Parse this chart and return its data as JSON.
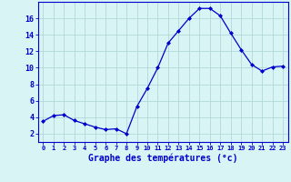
{
  "hours": [
    0,
    1,
    2,
    3,
    4,
    5,
    6,
    7,
    8,
    9,
    10,
    11,
    12,
    13,
    14,
    15,
    16,
    17,
    18,
    19,
    20,
    21,
    22,
    23
  ],
  "temperatures": [
    3.5,
    4.2,
    4.3,
    3.6,
    3.2,
    2.8,
    2.5,
    2.6,
    2.0,
    5.3,
    7.5,
    10.0,
    13.0,
    14.5,
    16.0,
    17.2,
    17.2,
    16.3,
    14.2,
    12.2,
    10.4,
    9.6,
    10.1,
    10.2
  ],
  "line_color": "#0000cc",
  "marker": "D",
  "marker_size": 2.0,
  "bg_color": "#d8f4f4",
  "grid_color": "#b0d8d8",
  "axis_color": "#0000cc",
  "xlabel": "Graphe des températures (°c)",
  "xlabel_fontsize": 7,
  "xtick_fontsize": 5,
  "ytick_fontsize": 6,
  "ylabel_ticks": [
    2,
    4,
    6,
    8,
    10,
    12,
    14,
    16
  ],
  "xlim": [
    -0.5,
    23.5
  ],
  "ylim": [
    1.0,
    18.0
  ]
}
